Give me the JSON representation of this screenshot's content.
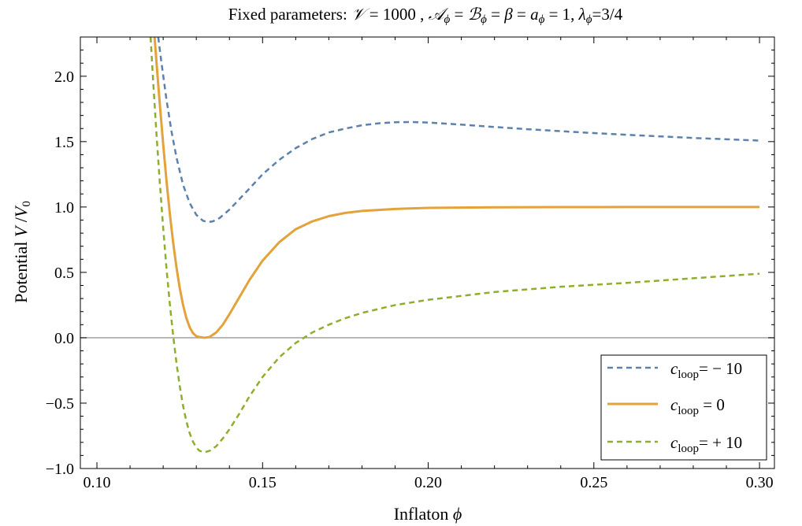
{
  "chart_data": {
    "type": "line",
    "title": "Fixed parameters: 𝒱 = 1000 , 𝒜ϕ = ℬϕ = β = aϕ = 1, λϕ=3/4",
    "title_parts": {
      "prefix": "Fixed parameters: ",
      "V_symbol": "𝒱",
      "mid1": " = 1000 , ",
      "A_symbol": "𝒜",
      "phi": "ϕ",
      "eq": " = ",
      "B_symbol": "ℬ",
      "beta": "β",
      "a_symbol": "a",
      "eq_one": " = 1, ",
      "lambda_symbol": "λ",
      "lambda_value": "=3/4"
    },
    "xlabel": "Inflaton ϕ",
    "xlabel_parts": {
      "text": "Inflaton ",
      "symbol": "ϕ"
    },
    "ylabel": "Potential V /V0",
    "ylabel_parts": {
      "text": "Potential ",
      "V": "V",
      "slash": " /",
      "V0": "V",
      "sub": "0"
    },
    "xlim": [
      0.095,
      0.3045
    ],
    "ylim": [
      -1.0,
      2.3
    ],
    "x_ticks": [
      0.1,
      0.15,
      0.2,
      0.25,
      0.3
    ],
    "x_tick_labels": [
      "0.10",
      "0.15",
      "0.20",
      "0.25",
      "0.30"
    ],
    "y_ticks": [
      -1.0,
      -0.5,
      0.0,
      0.5,
      1.0,
      1.5,
      2.0
    ],
    "y_tick_labels": [
      "−1.0",
      "−0.5",
      "0.0",
      "0.5",
      "1.0",
      "1.5",
      "2.0"
    ],
    "grid": false,
    "zero_line": true,
    "legend_position": "bottom-right",
    "series": [
      {
        "name": "c_loop = − 10",
        "label_main": "c",
        "label_sub": "loop",
        "label_rest": "= − 10",
        "color": "#5E81AC",
        "dash": "dashed",
        "x": [
          0.1185,
          0.1195,
          0.121,
          0.1225,
          0.124,
          0.126,
          0.128,
          0.13,
          0.132,
          0.1335,
          0.135,
          0.137,
          0.14,
          0.143,
          0.146,
          0.15,
          0.155,
          0.16,
          0.165,
          0.17,
          0.175,
          0.18,
          0.185,
          0.19,
          0.195,
          0.2,
          0.21,
          0.22,
          0.23,
          0.24,
          0.25,
          0.26,
          0.27,
          0.28,
          0.29,
          0.3
        ],
        "y": [
          2.3,
          2.1,
          1.82,
          1.58,
          1.38,
          1.17,
          1.03,
          0.94,
          0.895,
          0.885,
          0.89,
          0.915,
          0.98,
          1.06,
          1.14,
          1.25,
          1.36,
          1.45,
          1.52,
          1.57,
          1.6,
          1.625,
          1.64,
          1.648,
          1.65,
          1.646,
          1.63,
          1.612,
          1.595,
          1.58,
          1.565,
          1.552,
          1.54,
          1.528,
          1.518,
          1.508
        ]
      },
      {
        "name": "c_loop = 0",
        "label_main": "c",
        "label_sub": "loop",
        "label_rest": " = 0",
        "color": "#E3A23A",
        "dash": "solid",
        "x": [
          0.1174,
          0.118,
          0.119,
          0.12,
          0.121,
          0.122,
          0.123,
          0.124,
          0.125,
          0.126,
          0.127,
          0.128,
          0.129,
          0.13,
          0.131,
          0.1325,
          0.134,
          0.136,
          0.138,
          0.14,
          0.143,
          0.146,
          0.15,
          0.155,
          0.16,
          0.165,
          0.17,
          0.175,
          0.18,
          0.19,
          0.2,
          0.22,
          0.24,
          0.26,
          0.28,
          0.3
        ],
        "y": [
          2.3,
          2.1,
          1.78,
          1.48,
          1.2,
          0.95,
          0.73,
          0.54,
          0.38,
          0.25,
          0.15,
          0.08,
          0.035,
          0.012,
          0.005,
          0.0,
          0.006,
          0.04,
          0.1,
          0.18,
          0.31,
          0.44,
          0.59,
          0.73,
          0.83,
          0.89,
          0.93,
          0.955,
          0.97,
          0.985,
          0.993,
          0.998,
          0.999,
          1.0,
          1.0,
          1.0
        ]
      },
      {
        "name": "c_loop = + 10",
        "label_main": "c",
        "label_sub": "loop",
        "label_rest": "= + 10",
        "color": "#8FAE2D",
        "dash": "dashed",
        "x": [
          0.1162,
          0.117,
          0.118,
          0.119,
          0.12,
          0.121,
          0.122,
          0.123,
          0.124,
          0.125,
          0.126,
          0.127,
          0.128,
          0.129,
          0.13,
          0.131,
          0.1325,
          0.134,
          0.136,
          0.138,
          0.14,
          0.143,
          0.146,
          0.15,
          0.155,
          0.16,
          0.165,
          0.17,
          0.175,
          0.18,
          0.19,
          0.2,
          0.22,
          0.24,
          0.26,
          0.28,
          0.3
        ],
        "y": [
          2.3,
          1.95,
          1.55,
          1.18,
          0.84,
          0.53,
          0.26,
          0.02,
          -0.19,
          -0.37,
          -0.52,
          -0.64,
          -0.73,
          -0.795,
          -0.84,
          -0.865,
          -0.875,
          -0.865,
          -0.83,
          -0.77,
          -0.7,
          -0.58,
          -0.45,
          -0.3,
          -0.15,
          -0.04,
          0.04,
          0.1,
          0.15,
          0.19,
          0.25,
          0.29,
          0.35,
          0.39,
          0.42,
          0.455,
          0.49
        ]
      }
    ]
  }
}
